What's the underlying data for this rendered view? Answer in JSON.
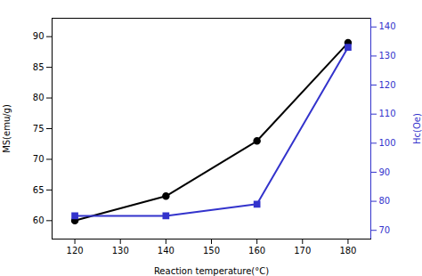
{
  "chart_data": {
    "type": "line",
    "xlabel": "Reaction temperature(°C)",
    "ylabel": "MS(emu/g)",
    "y2label": "Hc(Oe)",
    "x": [
      120,
      140,
      160,
      180
    ],
    "series": [
      {
        "color": "#000000",
        "marker": "circle",
        "values": [
          60.0,
          64.0,
          73.0,
          89.0
        ]
      },
      {
        "color": "#3333cc",
        "marker": "square",
        "axis": "y2",
        "values": [
          75.0,
          75.0,
          79.0,
          133.0
        ]
      }
    ],
    "xlim": [
      115,
      185
    ],
    "xticks": [
      120,
      130,
      140,
      150,
      160,
      170,
      180
    ],
    "ylim": [
      57,
      93
    ],
    "yticks": [
      60,
      65,
      70,
      75,
      80,
      85,
      90
    ],
    "y2lim": [
      67,
      143
    ],
    "y2ticks": [
      70,
      80,
      90,
      100,
      110,
      120,
      130,
      140
    ],
    "grid": false
  }
}
